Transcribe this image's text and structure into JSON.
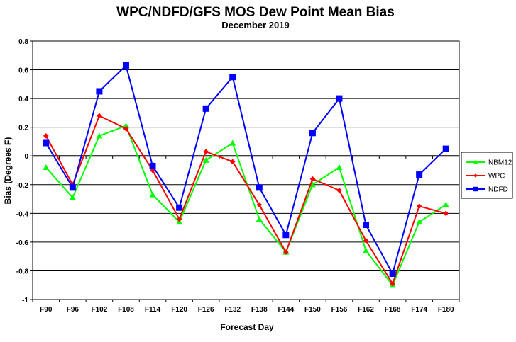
{
  "chart_data": {
    "type": "line",
    "title": "WPC/NDFD/GFS MOS Dew Point Mean Bias",
    "subtitle": "December 2019",
    "xlabel": "Forecast Day",
    "ylabel": "Bias (Degrees F)",
    "ylim": [
      -1,
      0.8
    ],
    "yticks": [
      -1,
      -0.8,
      -0.6,
      -0.4,
      -0.2,
      0,
      0.2,
      0.4,
      0.6,
      0.8
    ],
    "ytick_labels": [
      "-1",
      "-0.8",
      "-0.6",
      "-0.4",
      "-0.2",
      "0",
      "0.2",
      "0.4",
      "0.6",
      "0.8"
    ],
    "grid": true,
    "legend_position": "right",
    "categories": [
      "F90",
      "F96",
      "F102",
      "F108",
      "F114",
      "F120",
      "F126",
      "F132",
      "F138",
      "F144",
      "F150",
      "F156",
      "F162",
      "F168",
      "F174",
      "F180"
    ],
    "series": [
      {
        "name": "NBM12",
        "color": "#00ff00",
        "marker": "triangle",
        "values": [
          -0.08,
          -0.29,
          0.14,
          0.21,
          -0.27,
          -0.46,
          -0.03,
          0.09,
          -0.44,
          -0.67,
          -0.2,
          -0.08,
          -0.66,
          -0.9,
          -0.46,
          -0.34
        ]
      },
      {
        "name": "WPC",
        "color": "#ff0000",
        "marker": "diamond",
        "values": [
          0.14,
          -0.2,
          0.28,
          0.19,
          -0.1,
          -0.44,
          0.03,
          -0.04,
          -0.34,
          -0.67,
          -0.16,
          -0.24,
          -0.59,
          -0.89,
          -0.35,
          -0.4
        ]
      },
      {
        "name": "NDFD",
        "color": "#0000ff",
        "marker": "square",
        "values": [
          0.09,
          -0.22,
          0.45,
          0.63,
          -0.07,
          -0.36,
          0.33,
          0.55,
          -0.22,
          -0.55,
          0.16,
          0.4,
          -0.48,
          -0.82,
          -0.13,
          0.05
        ]
      }
    ]
  }
}
